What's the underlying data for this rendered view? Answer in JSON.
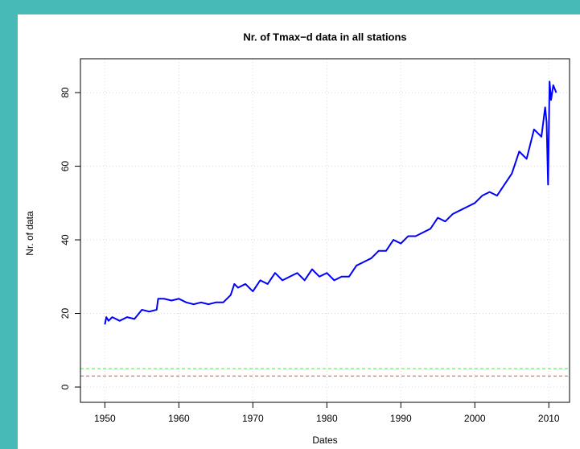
{
  "chart_data": {
    "type": "line",
    "title": "Nr. of Tmax−d data in all stations",
    "x_label": "Dates",
    "y_label": "Nr. of data",
    "x": [
      1950.0,
      1950.2,
      1950.5,
      1951,
      1952,
      1953,
      1954,
      1955,
      1956,
      1957,
      1957.2,
      1958,
      1959,
      1960,
      1961,
      1962,
      1963,
      1964,
      1965,
      1966,
      1967,
      1967.5,
      1968,
      1969,
      1970,
      1971,
      1972,
      1973,
      1974,
      1975,
      1976,
      1977,
      1978,
      1979,
      1980,
      1981,
      1982,
      1983,
      1984,
      1985,
      1986,
      1987,
      1988,
      1989,
      1990,
      1991,
      1992,
      1993,
      1994,
      1995,
      1996,
      1997,
      1998,
      1999,
      2000,
      2001,
      2002,
      2003,
      2004,
      2005,
      2006,
      2007,
      2008,
      2009,
      2009.5,
      2009.7,
      2009.9,
      2010.1,
      2010.3,
      2010.6,
      2011
    ],
    "series": [
      {
        "name": "Nr. of data",
        "color": "#0000ff",
        "values": [
          17,
          19,
          18,
          19,
          18,
          19,
          18.5,
          21,
          20.5,
          21,
          24,
          24,
          23.5,
          24,
          23,
          22.5,
          23,
          22.5,
          23,
          23,
          25,
          28,
          27,
          28,
          26,
          29,
          28,
          31,
          29,
          30,
          31,
          29,
          32,
          30,
          31,
          29,
          30,
          30,
          33,
          34,
          35,
          37,
          37,
          40,
          39,
          41,
          41,
          42,
          43,
          46,
          45,
          47,
          48,
          49,
          50,
          52,
          53,
          52,
          55,
          58,
          64,
          62,
          70,
          68,
          76,
          72,
          55,
          83,
          78,
          82,
          80
        ]
      }
    ],
    "hlines": [
      {
        "value": 5,
        "color": "#44ee44"
      },
      {
        "value": 3,
        "color": "#ff4444"
      }
    ],
    "xlim": [
      1946.7,
      2012.8
    ],
    "xticks": [
      1950,
      1960,
      1970,
      1980,
      1990,
      2000,
      2010
    ],
    "ylim": [
      -4.15,
      89.2
    ],
    "yticks": [
      0,
      20,
      40,
      60,
      80
    ],
    "grid": true
  }
}
